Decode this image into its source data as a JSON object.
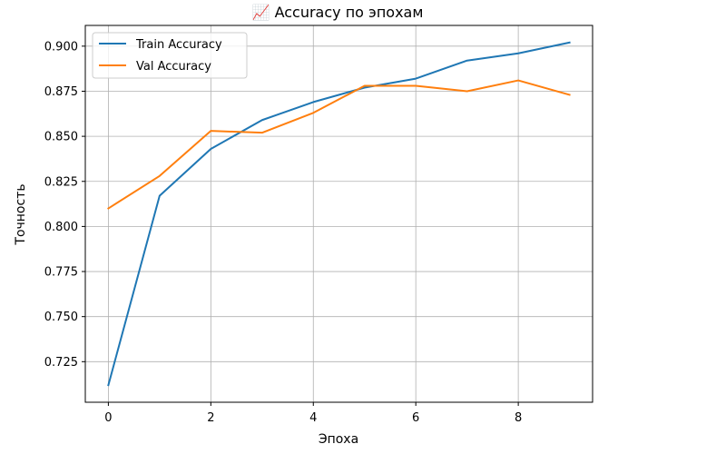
{
  "chart_data": {
    "type": "line",
    "title": "📈 Accuracy по эпохам",
    "xlabel": "Эпоха",
    "ylabel": "Точность",
    "x": [
      0,
      1,
      2,
      3,
      4,
      5,
      6,
      7,
      8,
      9
    ],
    "series": [
      {
        "name": "Train Accuracy",
        "color": "#1f77b4",
        "values": [
          0.712,
          0.817,
          0.843,
          0.859,
          0.869,
          0.877,
          0.882,
          0.892,
          0.896,
          0.902
        ]
      },
      {
        "name": "Val Accuracy",
        "color": "#ff7f0e",
        "values": [
          0.81,
          0.828,
          0.853,
          0.852,
          0.863,
          0.878,
          0.878,
          0.875,
          0.881,
          0.873
        ]
      }
    ],
    "xlim": [
      -0.45,
      9.45
    ],
    "ylim": [
      0.7025,
      0.9115
    ],
    "x_ticks": [
      0,
      2,
      4,
      6,
      8
    ],
    "x_tick_labels": [
      "0",
      "2",
      "4",
      "6",
      "8"
    ],
    "y_ticks": [
      0.725,
      0.75,
      0.775,
      0.8,
      0.825,
      0.85,
      0.875,
      0.9
    ],
    "y_tick_labels": [
      "0.725",
      "0.750",
      "0.775",
      "0.800",
      "0.825",
      "0.850",
      "0.875",
      "0.900"
    ],
    "grid": true,
    "legend_position": "top-left"
  }
}
